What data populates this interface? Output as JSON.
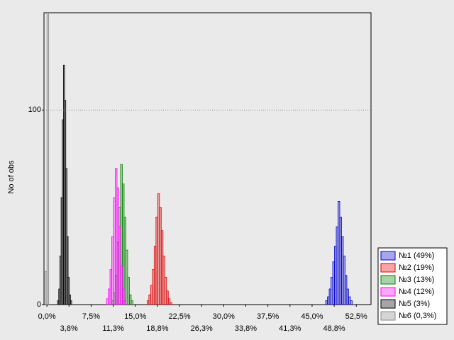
{
  "chart_data": {
    "type": "histogram",
    "y_label": "No of obs",
    "xlim": [
      -0.5,
      55
    ],
    "ylim": [
      0,
      150
    ],
    "yticks": [
      0,
      100
    ],
    "xticks": [
      {
        "value": 0,
        "label": "0,0%"
      },
      {
        "value": 3.75,
        "label": "3,8%"
      },
      {
        "value": 7.5,
        "label": "7,5%"
      },
      {
        "value": 11.25,
        "label": "11,3%"
      },
      {
        "value": 15,
        "label": "15,0%"
      },
      {
        "value": 18.75,
        "label": "18,8%"
      },
      {
        "value": 22.5,
        "label": "22,5%"
      },
      {
        "value": 26.25,
        "label": "26,3%"
      },
      {
        "value": 30,
        "label": "30,0%"
      },
      {
        "value": 33.75,
        "label": "33,8%"
      },
      {
        "value": 37.5,
        "label": "37,5%"
      },
      {
        "value": 41.25,
        "label": "41,3%"
      },
      {
        "value": 45,
        "label": "45,0%"
      },
      {
        "value": 48.75,
        "label": "48,8%"
      },
      {
        "value": 52.5,
        "label": "52,5%"
      }
    ],
    "grid": true,
    "legend": "bottom-right",
    "series": [
      {
        "name": "№1 (49%)",
        "color": "#0000cc",
        "bins": [
          47.3,
          47.6,
          47.9,
          48.2,
          48.5,
          48.8,
          49.1,
          49.4,
          49.7,
          50.0,
          50.3,
          50.6,
          50.9,
          51.2,
          51.5,
          51.8
        ],
        "values": [
          2,
          4,
          8,
          14,
          22,
          30,
          40,
          53,
          45,
          35,
          25,
          15,
          8,
          4,
          2
        ]
      },
      {
        "name": "№2 (19%)",
        "color": "#e00000",
        "bins": [
          17.0,
          17.3,
          17.6,
          17.9,
          18.2,
          18.5,
          18.8,
          19.1,
          19.4,
          19.7,
          20.0,
          20.3,
          20.6,
          20.9,
          21.2
        ],
        "values": [
          2,
          5,
          10,
          18,
          30,
          45,
          57,
          50,
          38,
          25,
          14,
          7,
          3,
          1
        ]
      },
      {
        "name": "№3 (13%)",
        "color": "#008000",
        "bins": [
          11.0,
          11.3,
          11.6,
          11.9,
          12.2,
          12.5,
          12.8,
          13.1,
          13.4,
          13.7,
          14.0,
          14.3,
          14.6
        ],
        "values": [
          2,
          6,
          15,
          32,
          50,
          72,
          62,
          45,
          28,
          14,
          5,
          2
        ]
      },
      {
        "name": "№4 (12%)",
        "color": "#ff00ff",
        "bins": [
          10.1,
          10.4,
          10.7,
          11.0,
          11.3,
          11.6,
          11.9,
          12.2,
          12.5,
          12.8,
          13.1,
          13.4
        ],
        "values": [
          3,
          8,
          18,
          35,
          55,
          70,
          60,
          40,
          20,
          8,
          2
        ]
      },
      {
        "name": "№5 (3%)",
        "color": "#000000",
        "bins": [
          1.8,
          2.0,
          2.2,
          2.4,
          2.6,
          2.8,
          3.0,
          3.2,
          3.4,
          3.6,
          3.8,
          4.0,
          4.2
        ],
        "values": [
          2,
          8,
          25,
          55,
          95,
          123,
          105,
          70,
          35,
          14,
          5,
          2
        ]
      },
      {
        "name": "№6 (0,3%)",
        "color": "#888888",
        "bins": [
          -0.3,
          0,
          0.3
        ],
        "values": [
          17,
          150
        ]
      }
    ]
  }
}
